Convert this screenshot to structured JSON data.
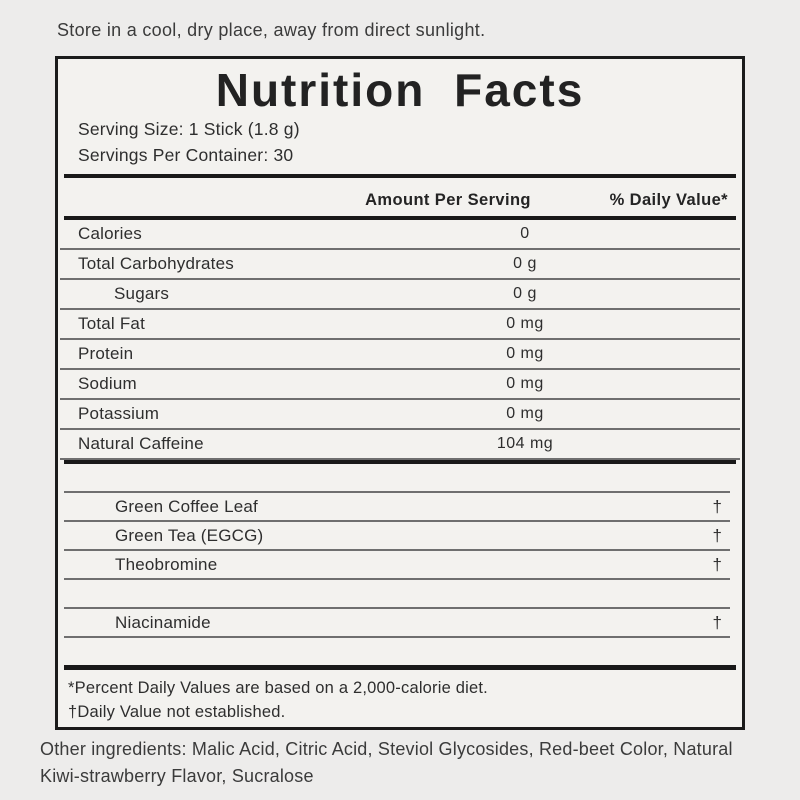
{
  "storage_note": "Store in a cool, dry place, away from direct sunlight.",
  "label": {
    "title": "Nutrition Facts",
    "serving_size": "Serving Size: 1 Stick (1.8 g)",
    "servings_per_container": "Servings Per Container: 30",
    "columns": {
      "amount": "Amount Per Serving",
      "daily_value": "% Daily Value*"
    },
    "nutrients": [
      {
        "name": "Calories",
        "amount": "0",
        "daily_value": ""
      },
      {
        "name": "Total Carbohydrates",
        "amount": "0 g",
        "daily_value": ""
      },
      {
        "name": "Sugars",
        "amount": "0 g",
        "daily_value": ""
      },
      {
        "name": "Total Fat",
        "amount": "0 mg",
        "daily_value": ""
      },
      {
        "name": "Protein",
        "amount": "0 mg",
        "daily_value": ""
      },
      {
        "name": "Sodium",
        "amount": "0 mg",
        "daily_value": ""
      },
      {
        "name": "Potassium",
        "amount": "0 mg",
        "daily_value": ""
      },
      {
        "name": "Natural Caffeine",
        "amount": "104 mg",
        "daily_value": ""
      }
    ],
    "botanicals": [
      {
        "name": "Green Coffee Leaf",
        "daily_value": "†"
      },
      {
        "name": "Green Tea (EGCG)",
        "daily_value": "†"
      },
      {
        "name": "Theobromine",
        "daily_value": "†"
      },
      {
        "name": "",
        "daily_value": ""
      },
      {
        "name": "Niacinamide",
        "daily_value": "†"
      }
    ],
    "footnotes": {
      "daily_values": "*Percent Daily Values are based on a 2,000-calorie diet.",
      "not_established": "†Daily Value not established."
    }
  },
  "other_ingredients": {
    "line1": "Other ingredients: Malic Acid, Citric Acid, Steviol Glycosides, Red-beet Color, Natural",
    "line2": "Kiwi-strawberry Flavor, Sucralose"
  },
  "colors": {
    "box_border": "#1b1b1b",
    "thick_rule": "#191919",
    "thin_rule": "#6f6f6f",
    "text": "#2e2e2e",
    "page_background": "#edeceb",
    "label_background": "#f3f2ef"
  }
}
